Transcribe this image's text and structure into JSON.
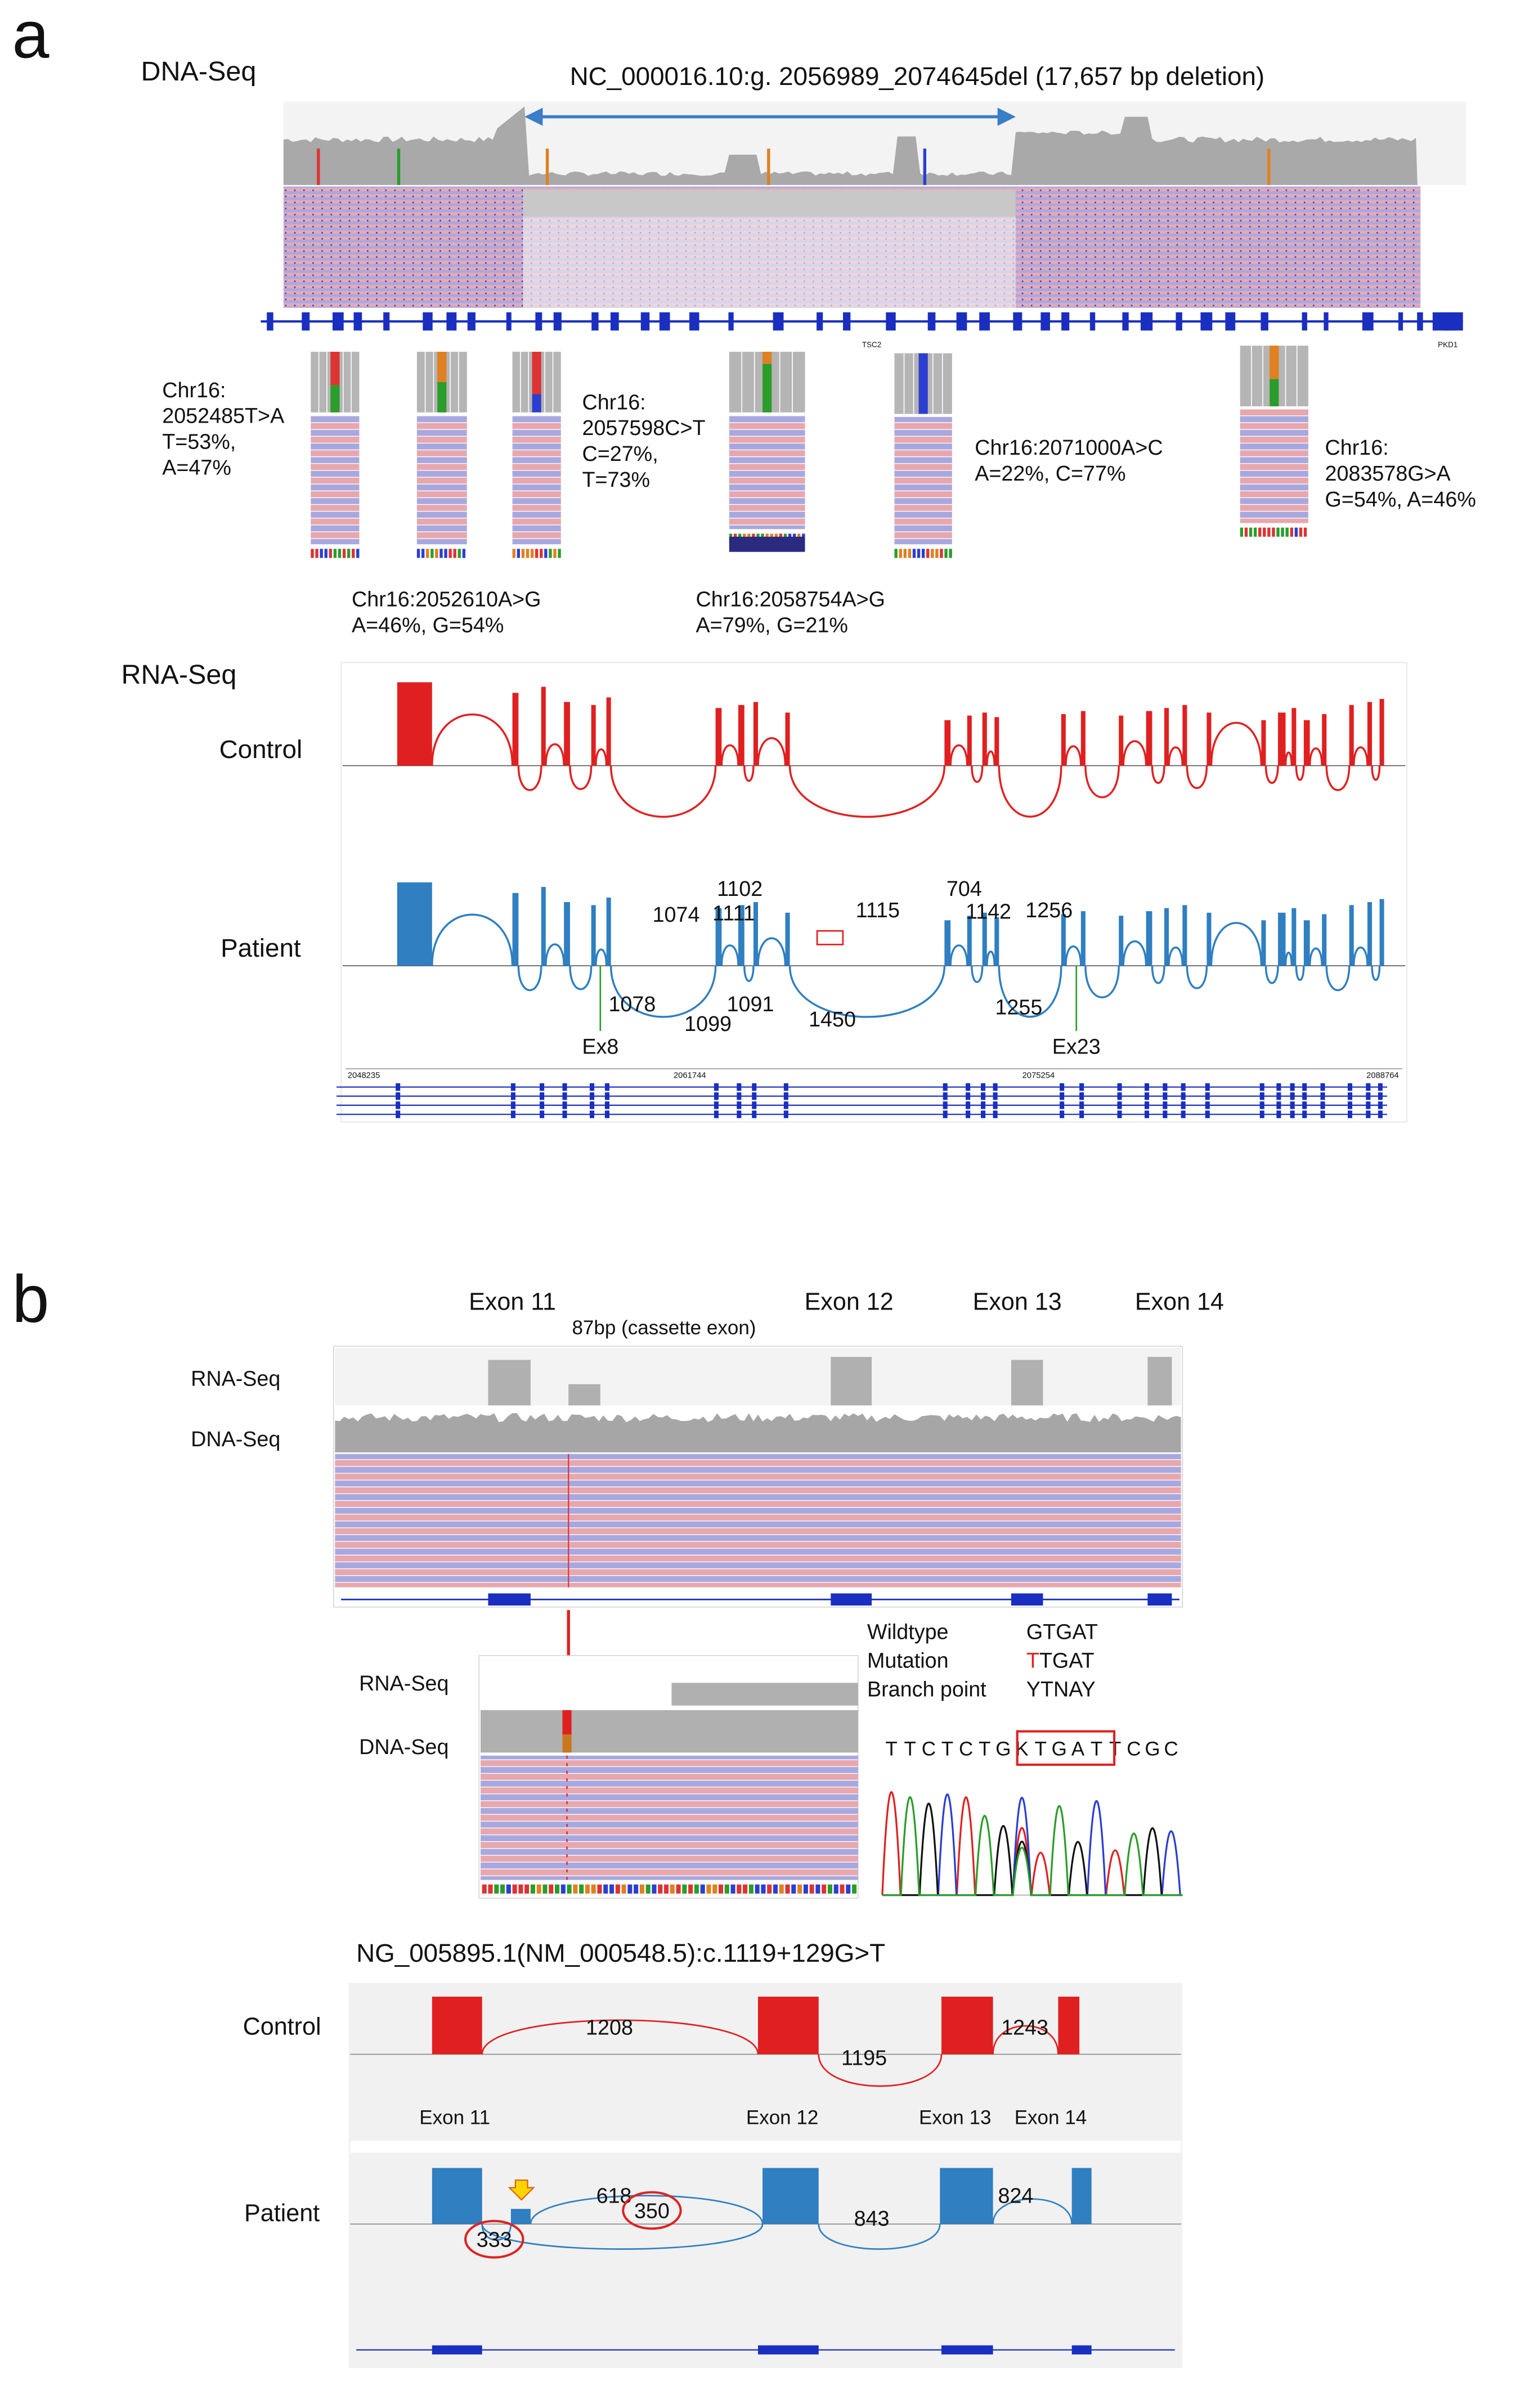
{
  "panel_a": {
    "label": "a",
    "dna_seq": {
      "title": "DNA-Seq",
      "deletion": "NC_000016.10:g. 2056989_2074645del (17,657 bp deletion)",
      "genes": [
        "TSC2",
        "PKD1"
      ],
      "variants": [
        {
          "lines": [
            "Chr16:",
            "2052485T>A",
            "T=53%,",
            "A=47%"
          ]
        },
        {
          "lines": [
            "Chr16:2052610A>G",
            "A=46%, G=54%"
          ]
        },
        {
          "lines": [
            "Chr16:",
            "2057598C>T",
            "C=27%,",
            "T=73%"
          ]
        },
        {
          "lines": [
            "Chr16:2058754A>G",
            "A=79%, G=21%"
          ]
        },
        {
          "lines": [
            "Chr16:2071000A>C",
            "A=22%, C=77%"
          ]
        },
        {
          "lines": [
            "Chr16:",
            "2083578G>A",
            "G=54%, A=46%"
          ]
        }
      ]
    },
    "rna_seq": {
      "title": "RNA-Seq",
      "control": "Control",
      "patient": "Patient",
      "patient_junctions": [
        "1102",
        "1074",
        "1111",
        "1115",
        "704",
        "1142",
        "1256",
        "1078",
        "1099",
        "1091",
        "1450",
        "1255"
      ],
      "exon_marks": [
        "Ex8",
        "Ex23"
      ],
      "coordinates": [
        "2048235",
        "2061744",
        "2075254",
        "2088764"
      ]
    }
  },
  "panel_b": {
    "label": "b",
    "exons": [
      "Exon 11",
      "Exon 12",
      "Exon 13",
      "Exon 14"
    ],
    "cassette": "87bp (cassette exon)",
    "tracks": [
      "RNA-Seq",
      "DNA-Seq"
    ],
    "zoom_tracks": [
      "RNA-Seq",
      "DNA-Seq"
    ],
    "sequence_table": {
      "rows": [
        [
          "Wildtype",
          "GTGAT"
        ],
        [
          "Mutation",
          [
            "T",
            "TGAT"
          ]
        ],
        [
          "Branch point",
          "YTNAY"
        ]
      ]
    },
    "chromatogram_bases": [
      "T",
      "T",
      "C",
      "T",
      "C",
      "T",
      "G",
      "K",
      "T",
      "G",
      "A",
      "T",
      "T",
      "C",
      "G",
      "C"
    ],
    "variant": "NG_005895.1(NM_000548.5):c.1119+129G>T",
    "sashimi": {
      "control": "Control",
      "patient": "Patient",
      "control_junctions": [
        "1208",
        "1195",
        "1243"
      ],
      "exon_labels": [
        "Exon 11",
        "Exon 12",
        "Exon 13",
        "Exon 14"
      ],
      "patient_junctions": [
        "618",
        "843",
        "824",
        "333",
        "350"
      ]
    }
  }
}
